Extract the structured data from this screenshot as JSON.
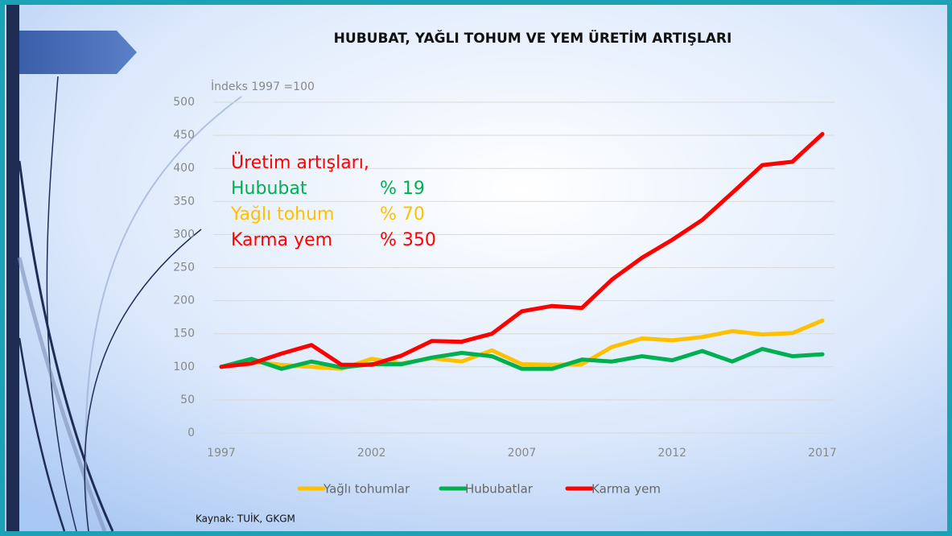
{
  "chart_data": {
    "type": "line",
    "title": "HUBUBAT, YAĞLI TOHUM VE YEM ÜRETİM ARTIŞLARI",
    "y_label": "İndeks 1997 =100",
    "source": "Kaynak: TUİK, GKGM",
    "x": [
      1997,
      1998,
      1999,
      2000,
      2001,
      2002,
      2003,
      2004,
      2005,
      2006,
      2007,
      2008,
      2009,
      2010,
      2011,
      2012,
      2013,
      2014,
      2015,
      2016,
      2017
    ],
    "xlim": [
      1997,
      2017
    ],
    "xticks": [
      1997,
      2002,
      2007,
      2012,
      2017
    ],
    "ylim": [
      0,
      500
    ],
    "yticks": [
      0,
      50,
      100,
      150,
      200,
      250,
      300,
      350,
      400,
      450,
      500
    ],
    "grid": true,
    "legend": "bottom",
    "series": [
      {
        "name": "Yağlı tohumlar",
        "color": "#ffc000",
        "values": [
          100,
          108,
          103,
          100,
          97,
          112,
          105,
          113,
          108,
          125,
          104,
          103,
          104,
          130,
          143,
          140,
          145,
          154,
          149,
          151,
          170
        ]
      },
      {
        "name": "Hububatlar",
        "color": "#00b050",
        "values": [
          100,
          112,
          97,
          108,
          99,
          104,
          104,
          114,
          121,
          116,
          97,
          97,
          111,
          108,
          116,
          110,
          124,
          108,
          127,
          116,
          119
        ]
      },
      {
        "name": "Karma yem",
        "color": "#ff0000",
        "values": [
          100,
          105,
          120,
          133,
          103,
          103,
          117,
          139,
          138,
          150,
          184,
          192,
          189,
          232,
          265,
          292,
          322,
          363,
          405,
          410,
          452
        ]
      }
    ],
    "annotations": [
      {
        "label": "Üretim artışları,",
        "color": "#ff0000"
      },
      {
        "label": "Hububat",
        "value": "% 19",
        "color": "#00b050"
      },
      {
        "label": "Yağlı tohum",
        "value": "% 70",
        "color": "#ffc000"
      },
      {
        "label": "Karma yem",
        "value": "% 350",
        "color": "#ff0000"
      }
    ]
  }
}
